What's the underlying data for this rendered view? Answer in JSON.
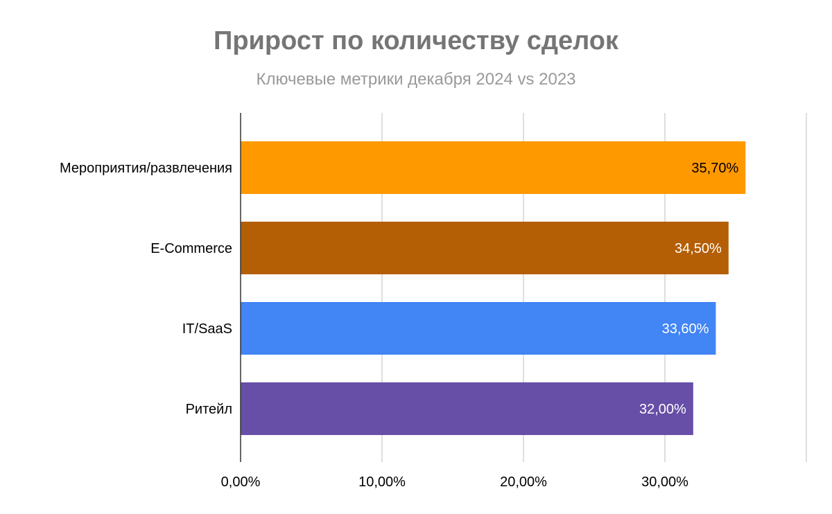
{
  "chart_data": {
    "type": "bar",
    "orientation": "horizontal",
    "title": "Прирост по количеству сделок",
    "subtitle": "Ключевые метрики декабря 2024 vs 2023",
    "categories": [
      "Мероприятия/развлечения",
      "E-Commerce",
      "IT/SaaS",
      "Ритейл"
    ],
    "values": [
      35.7,
      34.5,
      33.6,
      32.0
    ],
    "data_labels": [
      "35,70%",
      "34,50%",
      "33,60%",
      "32,00%"
    ],
    "colors": [
      "#FF9900",
      "#B45F06",
      "#4285F4",
      "#674EA7"
    ],
    "label_colors": [
      "#000000",
      "#FFFFFF",
      "#FFFFFF",
      "#FFFFFF"
    ],
    "x_ticks": [
      0,
      10,
      20,
      30,
      40
    ],
    "x_tick_labels": [
      "0,00%",
      "10,00%",
      "20,00%",
      "30,00%",
      ""
    ],
    "xlim": [
      0,
      40
    ],
    "grid": true,
    "legend": "none"
  }
}
